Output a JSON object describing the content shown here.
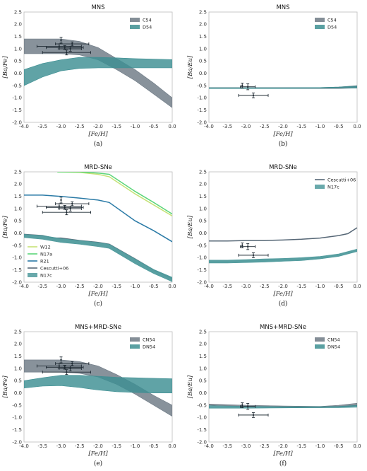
{
  "colors": {
    "gray": "#6e7a85",
    "teal": "#3d8f92",
    "teal_band": "#4f9a9c",
    "w12": "#c6e277",
    "n17a": "#5cd67a",
    "r21": "#2a7aa6",
    "cescutti": "#566776",
    "err": "#1f2a33"
  },
  "chart_data": [
    {
      "id": "a",
      "type": "area",
      "title": "MNS",
      "caption": "(a)",
      "xlabel": "[Fe/H]",
      "ylabel": "[Ba/Fe]",
      "xlim": [
        -4.0,
        0.0
      ],
      "ylim": [
        -2.0,
        2.5
      ],
      "xticks": [
        "-4.0",
        "-3.5",
        "-3.0",
        "-2.5",
        "-2.0",
        "-1.5",
        "-1.0",
        "-0.5",
        "0.0"
      ],
      "yticks": [
        "-2.0",
        "-1.5",
        "-1.0",
        "-0.5",
        "0.0",
        "0.5",
        "1.0",
        "1.5",
        "2.0",
        "2.5"
      ],
      "legend": {
        "position": "top-right",
        "entries": [
          "C54",
          "D54"
        ]
      },
      "series": [
        {
          "name": "C54",
          "kind": "band",
          "color": "gray",
          "x": [
            -4.0,
            -3.5,
            -3.0,
            -2.5,
            -2.0,
            -1.5,
            -1.0,
            -0.5,
            0.0
          ],
          "lower": [
            0.8,
            0.8,
            0.8,
            0.75,
            0.55,
            0.15,
            -0.3,
            -0.85,
            -1.4
          ],
          "upper": [
            1.4,
            1.4,
            1.4,
            1.3,
            1.05,
            0.6,
            0.15,
            -0.4,
            -1.0
          ]
        },
        {
          "name": "D54",
          "kind": "band",
          "color": "teal",
          "x": [
            -4.0,
            -3.5,
            -3.0,
            -2.5,
            -2.0,
            -1.5,
            -1.0,
            -0.5,
            0.0
          ],
          "lower": [
            -0.5,
            -0.15,
            0.1,
            0.2,
            0.22,
            0.22,
            0.22,
            0.22,
            0.22
          ],
          "upper": [
            0.15,
            0.4,
            0.55,
            0.65,
            0.65,
            0.63,
            0.6,
            0.58,
            0.56
          ]
        }
      ],
      "observations": [
        {
          "x": -3.0,
          "y": 1.35,
          "xerr": 0.0,
          "yerr": 0.12
        },
        {
          "x": -2.7,
          "y": 1.2,
          "xerr": 0.45,
          "yerr": 0.08
        },
        {
          "x": -3.05,
          "y": 1.1,
          "xerr": 0.6,
          "yerr": 0.1
        },
        {
          "x": -2.9,
          "y": 1.05,
          "xerr": 0.5,
          "yerr": 0.08
        },
        {
          "x": -2.75,
          "y": 1.0,
          "xerr": 0.3,
          "yerr": 0.1
        },
        {
          "x": -2.85,
          "y": 0.85,
          "xerr": 0.65,
          "yerr": 0.1
        }
      ]
    },
    {
      "id": "b",
      "type": "area",
      "title": "MNS",
      "caption": "(b)",
      "xlabel": "[Fe/H]",
      "ylabel": "[Ba/Eu]",
      "xlim": [
        -4.0,
        0.0
      ],
      "ylim": [
        -2.0,
        2.5
      ],
      "xticks": [
        "-4.0",
        "-3.5",
        "-3.0",
        "-2.5",
        "-2.0",
        "-1.5",
        "-1.0",
        "-0.5",
        "0.0"
      ],
      "yticks": [
        "-2.0",
        "-1.5",
        "-1.0",
        "-0.5",
        "0.0",
        "0.5",
        "1.0",
        "1.5",
        "2.0",
        "2.5"
      ],
      "legend": {
        "position": "top-right",
        "entries": [
          "C54",
          "D54"
        ]
      },
      "series": [
        {
          "name": "C54",
          "kind": "band",
          "color": "gray",
          "x": [
            -4.0,
            -3.0,
            -2.0,
            -1.0,
            -0.5,
            0.0
          ],
          "lower": [
            -0.62,
            -0.62,
            -0.62,
            -0.62,
            -0.62,
            -0.6
          ],
          "upper": [
            -0.58,
            -0.58,
            -0.58,
            -0.58,
            -0.56,
            -0.5
          ]
        },
        {
          "name": "D54",
          "kind": "band",
          "color": "teal",
          "x": [
            -4.0,
            -3.0,
            -2.0,
            -1.0,
            -0.5,
            0.0
          ],
          "lower": [
            -0.62,
            -0.62,
            -0.62,
            -0.61,
            -0.6,
            -0.6
          ],
          "upper": [
            -0.59,
            -0.59,
            -0.59,
            -0.58,
            -0.56,
            -0.52
          ]
        }
      ],
      "observations": [
        {
          "x": -3.1,
          "y": -0.5,
          "xerr": 0.0,
          "yerr": 0.1
        },
        {
          "x": -2.95,
          "y": -0.55,
          "xerr": 0.2,
          "yerr": 0.12
        },
        {
          "x": -2.8,
          "y": -0.9,
          "xerr": 0.4,
          "yerr": 0.1
        }
      ]
    },
    {
      "id": "c",
      "type": "line",
      "title": "MRD-SNe",
      "caption": "(c)",
      "xlabel": "[Fe/H]",
      "ylabel": "[Ba/Fe]",
      "xlim": [
        -4.0,
        0.0
      ],
      "ylim": [
        -2.0,
        2.5
      ],
      "xticks": [
        "-4.0",
        "-3.5",
        "-3.0",
        "-2.5",
        "-2.0",
        "-1.5",
        "-1.0",
        "-0.5",
        "0.0"
      ],
      "yticks": [
        "-2.0",
        "-1.5",
        "-1.0",
        "-0.5",
        "0.0",
        "0.5",
        "1.0",
        "1.5",
        "2.0",
        "2.5"
      ],
      "legend": {
        "position": "lower-left",
        "entries": [
          "W12",
          "N17a",
          "R21",
          "Cescutti+06",
          "N17c"
        ]
      },
      "series": [
        {
          "name": "W12",
          "kind": "line",
          "color": "w12",
          "x": [
            -3.1,
            -2.5,
            -2.0,
            -1.7,
            -1.0,
            -0.5,
            0.0
          ],
          "y": [
            2.5,
            2.48,
            2.4,
            2.3,
            1.6,
            1.15,
            0.7
          ]
        },
        {
          "name": "N17a",
          "kind": "line",
          "color": "n17a",
          "x": [
            -3.1,
            -2.5,
            -2.0,
            -1.7,
            -1.0,
            -0.5,
            0.0
          ],
          "y": [
            2.5,
            2.5,
            2.45,
            2.4,
            1.7,
            1.25,
            0.78
          ]
        },
        {
          "name": "R21",
          "kind": "line",
          "color": "r21",
          "x": [
            -4.0,
            -3.5,
            -3.0,
            -2.5,
            -2.0,
            -1.7,
            -1.0,
            -0.5,
            0.0
          ],
          "y": [
            1.55,
            1.55,
            1.5,
            1.43,
            1.35,
            1.25,
            0.5,
            0.1,
            -0.35
          ]
        },
        {
          "name": "Cescutti+06",
          "kind": "line",
          "color": "cescutti",
          "x": [
            -4.0,
            -3.5,
            -3.2,
            -3.0,
            -2.5,
            -2.0,
            -1.7,
            -1.0,
            -0.5,
            0.0
          ],
          "y": [
            -0.05,
            -0.1,
            -0.2,
            -0.2,
            -0.3,
            -0.38,
            -0.45,
            -1.05,
            -1.5,
            -1.85
          ]
        },
        {
          "name": "N17c",
          "kind": "band",
          "color": "teal_band",
          "x": [
            -4.0,
            -3.5,
            -3.0,
            -2.5,
            -2.0,
            -1.7,
            -1.0,
            -0.5,
            0.0
          ],
          "lower": [
            -0.18,
            -0.25,
            -0.38,
            -0.45,
            -0.55,
            -0.62,
            -1.25,
            -1.65,
            -1.98
          ],
          "upper": [
            -0.05,
            -0.1,
            -0.22,
            -0.3,
            -0.38,
            -0.45,
            -1.05,
            -1.48,
            -1.8
          ]
        }
      ],
      "observations": [
        {
          "x": -3.0,
          "y": 1.35,
          "xerr": 0.0,
          "yerr": 0.12
        },
        {
          "x": -2.7,
          "y": 1.2,
          "xerr": 0.45,
          "yerr": 0.08
        },
        {
          "x": -3.05,
          "y": 1.1,
          "xerr": 0.6,
          "yerr": 0.1
        },
        {
          "x": -2.9,
          "y": 1.05,
          "xerr": 0.5,
          "yerr": 0.08
        },
        {
          "x": -2.75,
          "y": 1.0,
          "xerr": 0.3,
          "yerr": 0.1
        },
        {
          "x": -2.85,
          "y": 0.85,
          "xerr": 0.65,
          "yerr": 0.1
        }
      ]
    },
    {
      "id": "d",
      "type": "line",
      "title": "MRD-SNe",
      "caption": "(d)",
      "xlabel": "[Fe/H]",
      "ylabel": "[Ba/Eu]",
      "xlim": [
        -4.0,
        0.0
      ],
      "ylim": [
        -2.0,
        2.5
      ],
      "xticks": [
        "-4.0",
        "-3.5",
        "-3.0",
        "-2.5",
        "-2.0",
        "-1.5",
        "-1.0",
        "-0.5",
        "0.0"
      ],
      "yticks": [
        "-2.0",
        "-1.5",
        "-1.0",
        "-0.5",
        "0.0",
        "0.5",
        "1.0",
        "1.5",
        "2.0",
        "2.5"
      ],
      "legend": {
        "position": "top-right",
        "entries": [
          "Cescutti+06",
          "N17c"
        ]
      },
      "series": [
        {
          "name": "Cescutti+06",
          "kind": "line",
          "color": "cescutti",
          "x": [
            -4.0,
            -3.5,
            -3.0,
            -2.5,
            -2.0,
            -1.5,
            -1.0,
            -0.75,
            -0.5,
            -0.25,
            0.0
          ],
          "y": [
            -0.32,
            -0.32,
            -0.3,
            -0.3,
            -0.28,
            -0.25,
            -0.2,
            -0.15,
            -0.1,
            -0.02,
            0.22
          ]
        },
        {
          "name": "N17c",
          "kind": "band",
          "color": "teal_band",
          "x": [
            -4.0,
            -3.5,
            -3.0,
            -2.5,
            -2.0,
            -1.5,
            -1.0,
            -0.5,
            0.0
          ],
          "lower": [
            -1.22,
            -1.22,
            -1.2,
            -1.18,
            -1.15,
            -1.12,
            -1.05,
            -0.95,
            -0.75
          ],
          "upper": [
            -1.1,
            -1.1,
            -1.08,
            -1.05,
            -1.03,
            -1.0,
            -0.95,
            -0.85,
            -0.65
          ]
        }
      ],
      "observations": [
        {
          "x": -3.1,
          "y": -0.5,
          "xerr": 0.0,
          "yerr": 0.1
        },
        {
          "x": -2.95,
          "y": -0.55,
          "xerr": 0.2,
          "yerr": 0.12
        },
        {
          "x": -2.8,
          "y": -0.9,
          "xerr": 0.4,
          "yerr": 0.1
        }
      ]
    },
    {
      "id": "e",
      "type": "area",
      "title": "MNS+MRD-SNe",
      "caption": "(e)",
      "xlabel": "[Fe/H]",
      "ylabel": "[Ba/Fe]",
      "xlim": [
        -4.0,
        0.0
      ],
      "ylim": [
        -2.0,
        2.5
      ],
      "xticks": [
        "-4.0",
        "-3.5",
        "-3.0",
        "-2.5",
        "-2.0",
        "-1.5",
        "-1.0",
        "-0.5",
        "0.0"
      ],
      "yticks": [
        "-2.0",
        "-1.5",
        "-1.0",
        "-0.5",
        "0.0",
        "0.5",
        "1.0",
        "1.5",
        "2.0",
        "2.5"
      ],
      "legend": {
        "position": "top-right",
        "entries": [
          "CN54",
          "DN54"
        ]
      },
      "series": [
        {
          "name": "CN54",
          "kind": "band",
          "color": "gray",
          "x": [
            -4.0,
            -3.5,
            -3.0,
            -2.5,
            -2.0,
            -1.5,
            -1.0,
            -0.5,
            0.0
          ],
          "lower": [
            0.85,
            0.85,
            0.85,
            0.8,
            0.65,
            0.35,
            -0.05,
            -0.5,
            -0.95
          ],
          "upper": [
            1.35,
            1.35,
            1.35,
            1.28,
            1.1,
            0.75,
            0.35,
            -0.1,
            -0.5
          ]
        },
        {
          "name": "DN54",
          "kind": "band",
          "color": "teal",
          "x": [
            -4.0,
            -3.5,
            -3.0,
            -2.5,
            -2.0,
            -1.5,
            -1.0,
            -0.5,
            0.0
          ],
          "lower": [
            0.2,
            0.28,
            0.3,
            0.22,
            0.12,
            0.05,
            0.02,
            0.0,
            0.0
          ],
          "upper": [
            0.5,
            0.62,
            0.72,
            0.72,
            0.68,
            0.64,
            0.62,
            0.6,
            0.58
          ]
        }
      ],
      "observations": [
        {
          "x": -3.0,
          "y": 1.35,
          "xerr": 0.0,
          "yerr": 0.12
        },
        {
          "x": -2.7,
          "y": 1.2,
          "xerr": 0.45,
          "yerr": 0.08
        },
        {
          "x": -3.05,
          "y": 1.1,
          "xerr": 0.6,
          "yerr": 0.1
        },
        {
          "x": -2.9,
          "y": 1.05,
          "xerr": 0.5,
          "yerr": 0.08
        },
        {
          "x": -2.75,
          "y": 1.0,
          "xerr": 0.3,
          "yerr": 0.1
        },
        {
          "x": -2.85,
          "y": 0.85,
          "xerr": 0.65,
          "yerr": 0.1
        }
      ]
    },
    {
      "id": "f",
      "type": "area",
      "title": "MNS+MRD-SNe",
      "caption": "(f)",
      "xlabel": "[Fe/H]",
      "ylabel": "[Ba/Eu]",
      "xlim": [
        -4.0,
        0.0
      ],
      "ylim": [
        -2.0,
        2.5
      ],
      "xticks": [
        "-4.0",
        "-3.5",
        "-3.0",
        "-2.5",
        "-2.0",
        "-1.5",
        "-1.0",
        "-0.5",
        "0.0"
      ],
      "yticks": [
        "-2.0",
        "-1.5",
        "-1.0",
        "-0.5",
        "0.0",
        "0.5",
        "1.0",
        "1.5",
        "2.0",
        "2.5"
      ],
      "legend": {
        "position": "top-right",
        "entries": [
          "CN54",
          "DN54"
        ]
      },
      "series": [
        {
          "name": "CN54",
          "kind": "band",
          "color": "gray",
          "x": [
            -4.0,
            -3.0,
            -2.0,
            -1.0,
            -0.5,
            0.0
          ],
          "lower": [
            -0.5,
            -0.55,
            -0.58,
            -0.6,
            -0.58,
            -0.52
          ],
          "upper": [
            -0.45,
            -0.5,
            -0.53,
            -0.55,
            -0.5,
            -0.42
          ]
        },
        {
          "name": "DN54",
          "kind": "band",
          "color": "teal",
          "x": [
            -4.0,
            -3.0,
            -2.0,
            -1.0,
            -0.5,
            0.0
          ],
          "lower": [
            -0.62,
            -0.62,
            -0.61,
            -0.6,
            -0.6,
            -0.58
          ],
          "upper": [
            -0.52,
            -0.55,
            -0.56,
            -0.56,
            -0.55,
            -0.5
          ]
        }
      ],
      "observations": [
        {
          "x": -3.1,
          "y": -0.5,
          "xerr": 0.0,
          "yerr": 0.1
        },
        {
          "x": -2.95,
          "y": -0.55,
          "xerr": 0.2,
          "yerr": 0.12
        },
        {
          "x": -2.8,
          "y": -0.9,
          "xerr": 0.4,
          "yerr": 0.1
        }
      ]
    }
  ]
}
